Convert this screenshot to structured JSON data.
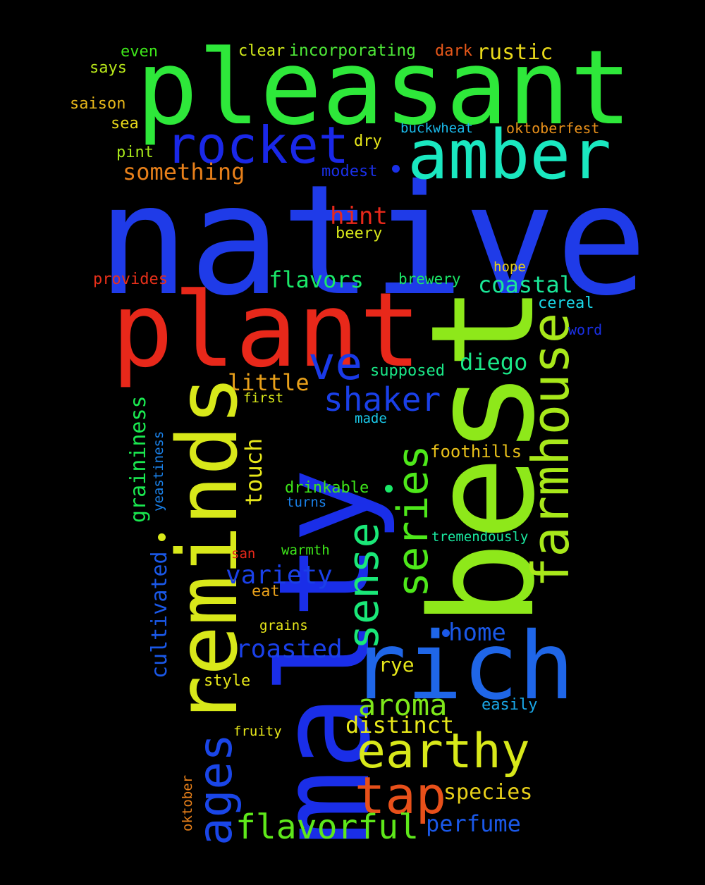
{
  "words": [
    {
      "text": "native",
      "color": "#1f3be8"
    },
    {
      "text": "pleasant",
      "color": "#2ee83a"
    },
    {
      "text": "best",
      "color": "#8ee81a"
    },
    {
      "text": "malty",
      "color": "#1a2ee8"
    },
    {
      "text": "plant",
      "color": "#e8281a"
    },
    {
      "text": "reminds",
      "color": "#d8e81a"
    },
    {
      "text": "rich",
      "color": "#1f66e8"
    },
    {
      "text": "amber",
      "color": "#1ae8c0"
    },
    {
      "text": "rocket",
      "color": "#1a28e8"
    },
    {
      "text": "farmhouse",
      "color": "#a8e81a"
    },
    {
      "text": "sense",
      "color": "#1ae878"
    },
    {
      "text": "series",
      "color": "#4ee81a"
    },
    {
      "text": "earthy",
      "color": "#d8e81a"
    },
    {
      "text": "tap",
      "color": "#e8501a"
    },
    {
      "text": "ages",
      "color": "#1a46e8"
    },
    {
      "text": "ve",
      "color": "#1a3ae8"
    },
    {
      "text": "flavorful",
      "color": "#5ee81a"
    },
    {
      "text": "shaker",
      "color": "#1a40e8"
    },
    {
      "text": "aroma",
      "color": "#7ee81a"
    },
    {
      "text": "roasted",
      "color": "#1a40e8"
    },
    {
      "text": "something",
      "color": "#e8801a"
    },
    {
      "text": "variety",
      "color": "#1a40e8"
    },
    {
      "text": "coastal",
      "color": "#1ae898"
    },
    {
      "text": "distinct",
      "color": "#e8e81a"
    },
    {
      "text": "perfume",
      "color": "#1a58e8"
    },
    {
      "text": "flavors",
      "color": "#1ae868"
    },
    {
      "text": "little",
      "color": "#e8a01a"
    },
    {
      "text": "hint",
      "color": "#e8281a"
    },
    {
      "text": "species",
      "color": "#e8d01a"
    },
    {
      "text": "diego",
      "color": "#1ae888"
    },
    {
      "text": "home",
      "color": "#1a58e8"
    },
    {
      "text": "rustic",
      "color": "#e8d81a"
    },
    {
      "text": "touch",
      "color": "#e8e81a"
    },
    {
      "text": "graininess",
      "color": "#1ae850"
    },
    {
      "text": "cultivated",
      "color": "#1a58e8"
    },
    {
      "text": "rye",
      "color": "#e8e81a"
    },
    {
      "text": "foothills",
      "color": "#e8c01a"
    },
    {
      "text": "drinkable",
      "color": "#3ee81a"
    },
    {
      "text": "oktoberfest",
      "color": "#e8901a"
    },
    {
      "text": "incorporating",
      "color": "#4ee838"
    },
    {
      "text": "modest",
      "color": "#1a30e8"
    },
    {
      "text": "dark",
      "color": "#e8581a"
    },
    {
      "text": "clear",
      "color": "#d0e81a"
    },
    {
      "text": "saison",
      "color": "#e8b81a"
    },
    {
      "text": "even",
      "color": "#3ee81a"
    },
    {
      "text": "says",
      "color": "#b8e81a"
    },
    {
      "text": "sea",
      "color": "#e8d81a"
    },
    {
      "text": "pint",
      "color": "#a8e81a"
    },
    {
      "text": "dry",
      "color": "#e8e81a"
    },
    {
      "text": "buckwheat",
      "color": "#1ab8e8"
    },
    {
      "text": "beery",
      "color": "#d8e81a"
    },
    {
      "text": "provides",
      "color": "#e8301a"
    },
    {
      "text": "brewery",
      "color": "#1ae868"
    },
    {
      "text": "hope",
      "color": "#e8d01a"
    },
    {
      "text": "cereal",
      "color": "#1ad8e8"
    },
    {
      "text": "word",
      "color": "#1a30e8"
    },
    {
      "text": "supposed",
      "color": "#1ae888"
    },
    {
      "text": "first",
      "color": "#d8e81a"
    },
    {
      "text": "made",
      "color": "#1ac8e8"
    },
    {
      "text": "yeastiness",
      "color": "#1a80e8"
    },
    {
      "text": "turns",
      "color": "#1a80e8"
    },
    {
      "text": "tremendously",
      "color": "#1ae8a0"
    },
    {
      "text": "san",
      "color": "#e8281a"
    },
    {
      "text": "warmth",
      "color": "#3ee81a"
    },
    {
      "text": "eat",
      "color": "#e8a01a"
    },
    {
      "text": "grains",
      "color": "#e8e81a"
    },
    {
      "text": "style",
      "color": "#e8e81a"
    },
    {
      "text": "easily",
      "color": "#1aa8e8"
    },
    {
      "text": "fruity",
      "color": "#e8e81a"
    },
    {
      "text": "oktober",
      "color": "#e8801a"
    }
  ],
  "dots": [
    {
      "color": "#1a30e8"
    },
    {
      "color": "#1a58e8"
    },
    {
      "color": "#1ae868"
    },
    {
      "color": "#d8e81a"
    }
  ]
}
